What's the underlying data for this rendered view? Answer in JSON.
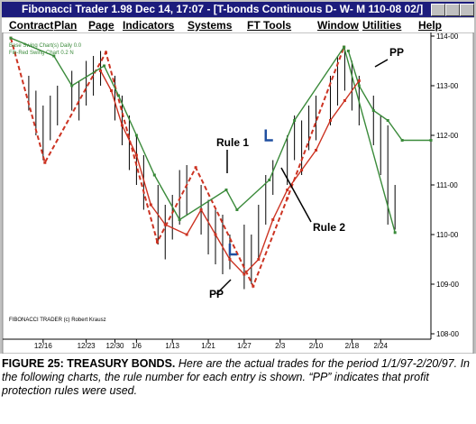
{
  "window": {
    "title": "Fibonacci Trader 1.98 Dec 14, 17:07 - [T-bonds Continuous D- W- M 110-08 02/]",
    "menu": [
      "Contract",
      "Plan",
      "Page",
      "Indicators",
      "Systems",
      "FT Tools",
      "Window",
      "Utilities",
      "Help"
    ]
  },
  "chart_data": {
    "type": "line",
    "xlim": [
      0,
      59
    ],
    "xticks": [
      {
        "value": 5,
        "label": "12/16"
      },
      {
        "value": 11,
        "label": "12/23"
      },
      {
        "value": 15,
        "label": "12/30"
      },
      {
        "value": 18,
        "label": "1/6"
      },
      {
        "value": 23,
        "label": "1/13"
      },
      {
        "value": 28,
        "label": "1/21"
      },
      {
        "value": 33,
        "label": "1/27"
      },
      {
        "value": 38,
        "label": "2/3"
      },
      {
        "value": 43,
        "label": "2/10"
      },
      {
        "value": 48,
        "label": "2/18"
      },
      {
        "value": 52,
        "label": "2/24"
      }
    ],
    "ylim": [
      108,
      114
    ],
    "yticks": [
      {
        "value": 114,
        "label": "114-00"
      },
      {
        "value": 113,
        "label": "113-00"
      },
      {
        "value": 112,
        "label": "112-00"
      },
      {
        "value": 111,
        "label": "111-00"
      },
      {
        "value": 110,
        "label": "110-00"
      },
      {
        "value": 109,
        "label": "109-00"
      },
      {
        "value": 108,
        "label": "108-00"
      }
    ],
    "legend_text": [
      "Base Swing Chart(s) Daily 0.0",
      "Fib-Red Swing Chart 0.2 N"
    ],
    "footer": "FIBONACCI TRADER (c) Robert Krausz",
    "annotations": [
      "Rule 1",
      "Rule 2",
      "PP",
      "PP"
    ],
    "bars": {
      "color": "#000000",
      "x": [
        3,
        4,
        5,
        6,
        7,
        9,
        10,
        11,
        12,
        13,
        15,
        16,
        17,
        18,
        19,
        21,
        22,
        23,
        24,
        25,
        27,
        28,
        29,
        30,
        31,
        33,
        34,
        35,
        36,
        37,
        39,
        40,
        41,
        42,
        43,
        45,
        46,
        47,
        48,
        49,
        51,
        52,
        53,
        54
      ],
      "high": [
        113.2,
        112.9,
        112.6,
        112.8,
        113.0,
        113.3,
        113.1,
        113.5,
        113.6,
        113.7,
        113.2,
        112.8,
        112.4,
        112.0,
        111.6,
        111.0,
        110.6,
        110.8,
        111.3,
        111.4,
        111.0,
        110.7,
        110.5,
        110.4,
        110.0,
        110.2,
        110.0,
        110.6,
        111.2,
        111.5,
        112.0,
        112.4,
        112.3,
        112.6,
        112.8,
        113.2,
        113.6,
        113.8,
        113.5,
        113.2,
        112.8,
        112.4,
        112.2,
        111.0
      ],
      "low": [
        112.5,
        112.0,
        111.5,
        111.9,
        112.2,
        112.5,
        112.3,
        112.6,
        112.8,
        113.0,
        112.3,
        111.8,
        111.3,
        111.0,
        110.5,
        109.8,
        109.5,
        109.9,
        110.2,
        110.4,
        110.0,
        109.6,
        109.4,
        109.2,
        109.3,
        108.9,
        109.0,
        109.5,
        110.2,
        110.8,
        111.0,
        111.5,
        111.2,
        111.7,
        111.9,
        112.2,
        112.6,
        112.9,
        112.5,
        112.2,
        111.8,
        111.2,
        110.2,
        110.1
      ]
    },
    "series": [
      {
        "color": "#cc3322",
        "style": "dashed",
        "x": [
          0.5,
          5.25,
          13.75,
          20.9,
          26.25,
          34.25,
          39,
          46.9
        ],
        "values": [
          113.96,
          111.45,
          113.67,
          109.85,
          111.35,
          108.96,
          110.73,
          113.78
        ]
      },
      {
        "color": "#3a8a3a",
        "style": "solid",
        "x": [
          0.5,
          6.5,
          9,
          13.5,
          15.5,
          18,
          20.5,
          24,
          30.5,
          32,
          36.5,
          40,
          46.9,
          54
        ],
        "values": [
          113.96,
          113.6,
          113.0,
          113.4,
          112.8,
          112.0,
          111.2,
          110.3,
          110.9,
          110.5,
          111.1,
          112.3,
          113.78,
          110.04
        ]
      },
      {
        "color": "#3a8a3a",
        "style": "solid",
        "x": [
          47.5,
          49,
          51,
          53,
          55,
          59
        ],
        "values": [
          113.7,
          113.0,
          112.5,
          112.3,
          111.9,
          111.9
        ]
      },
      {
        "color": "#cc3322",
        "style": "solid",
        "x": [
          13,
          14.5,
          16,
          18,
          20,
          22,
          25,
          27,
          29,
          31,
          33,
          35,
          37,
          39,
          41,
          43,
          45,
          47,
          49
        ],
        "values": [
          113.3,
          112.9,
          112.2,
          111.6,
          110.6,
          110.2,
          110.0,
          110.5,
          110.0,
          109.5,
          109.2,
          109.5,
          110.3,
          110.9,
          111.3,
          111.7,
          112.3,
          112.7,
          113.1
        ]
      }
    ],
    "entries": {
      "color": "#1f4fa0",
      "x": [
        31,
        36
      ],
      "values": [
        109.6,
        111.9
      ]
    }
  },
  "caption": {
    "title": "FIGURE 25: TREASURY BONDS.",
    "text": "Here are the actual trades for the period 1/1/97-2/20/97. In the following charts, the rule number for each entry is shown. “PP” indicates that profit protection rules were used."
  }
}
